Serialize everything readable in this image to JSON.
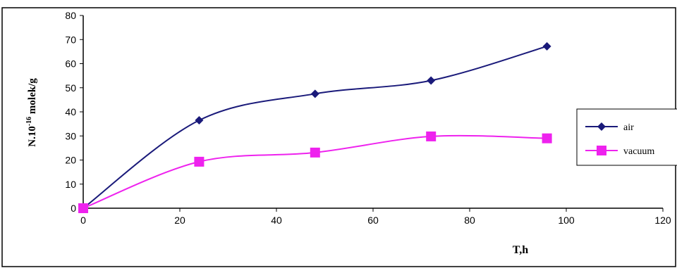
{
  "chart_data": {
    "type": "line",
    "x": [
      0,
      24,
      48,
      72,
      96
    ],
    "series": [
      {
        "name": "air",
        "values": [
          0,
          36.5,
          47.5,
          53,
          67.2
        ],
        "color": "#1a1a7a",
        "marker": "diamond"
      },
      {
        "name": "vacuum",
        "values": [
          0,
          19.3,
          23.1,
          29.8,
          29.0
        ],
        "color": "#ee22ee",
        "marker": "square"
      }
    ],
    "title": "",
    "xlabel": "T,h",
    "ylabel_main": "N.10",
    "ylabel_sup": "-16",
    "ylabel_unit": " molek/g",
    "xlim": [
      0,
      120
    ],
    "ylim": [
      0,
      80
    ],
    "xticks": [
      0,
      20,
      40,
      60,
      80,
      100,
      120
    ],
    "yticks": [
      0,
      10,
      20,
      30,
      40,
      50,
      60,
      70,
      80
    ],
    "grid": false,
    "legend_position": "right"
  }
}
